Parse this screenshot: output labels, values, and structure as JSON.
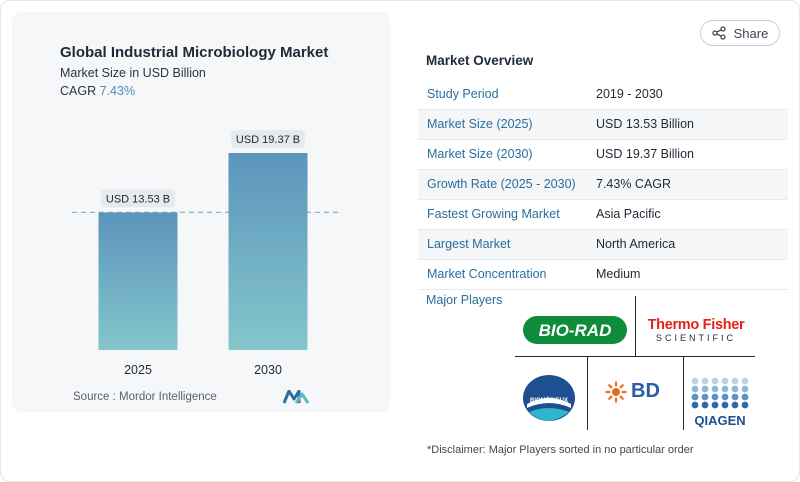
{
  "share": {
    "label": "Share",
    "icon": "share-icon"
  },
  "chart_panel": {
    "title": "Global Industrial Microbiology Market",
    "subtitle": "Market Size in USD Billion",
    "cagr_label": "CAGR",
    "cagr_value": "7.43%",
    "source": "Source :   Mordor Intelligence"
  },
  "chart_data": {
    "type": "bar",
    "title": "Global Industrial Microbiology Market",
    "ylabel": "Market Size in USD Billion",
    "categories": [
      "2025",
      "2030"
    ],
    "values": [
      13.53,
      19.37
    ],
    "data_labels": [
      "USD 13.53 B",
      "USD 19.37 B"
    ],
    "ylim": [
      0,
      20
    ],
    "reference_line": 13.53,
    "grid": false,
    "colors": {
      "bar_top": "#5b95bd",
      "bar_bottom": "#85c6cb",
      "label_bg": "#e6e9ed",
      "ref_line": "#7fb8c9"
    }
  },
  "overview": {
    "title": "Market Overview",
    "rows": [
      {
        "key": "Study Period",
        "value": "2019 - 2030"
      },
      {
        "key": "Market Size (2025)",
        "value": "USD 13.53 Billion"
      },
      {
        "key": "Market Size (2030)",
        "value": "USD 19.37 Billion"
      },
      {
        "key": "Growth Rate (2025 - 2030)",
        "value": "7.43% CAGR"
      },
      {
        "key": "Fastest Growing Market",
        "value": "Asia Pacific"
      },
      {
        "key": "Largest Market",
        "value": "North America"
      },
      {
        "key": "Market Concentration",
        "value": "Medium"
      }
    ],
    "major_players_label": "Major Players",
    "players": [
      {
        "name": "BIO-RAD",
        "color": "#0e8c3c"
      },
      {
        "name": "Thermo Fisher",
        "sub": "SCIENTIFIC",
        "color": "#e2231a"
      },
      {
        "name": "BIOMÉRIEUX",
        "color": "#1d4f91"
      },
      {
        "name": "BD",
        "color": "#e56a1f",
        "color2": "#2a5caa"
      },
      {
        "name": "QIAGEN",
        "color": "#1d4f91"
      }
    ],
    "disclaimer": "*Disclaimer: Major Players sorted in no particular order"
  }
}
